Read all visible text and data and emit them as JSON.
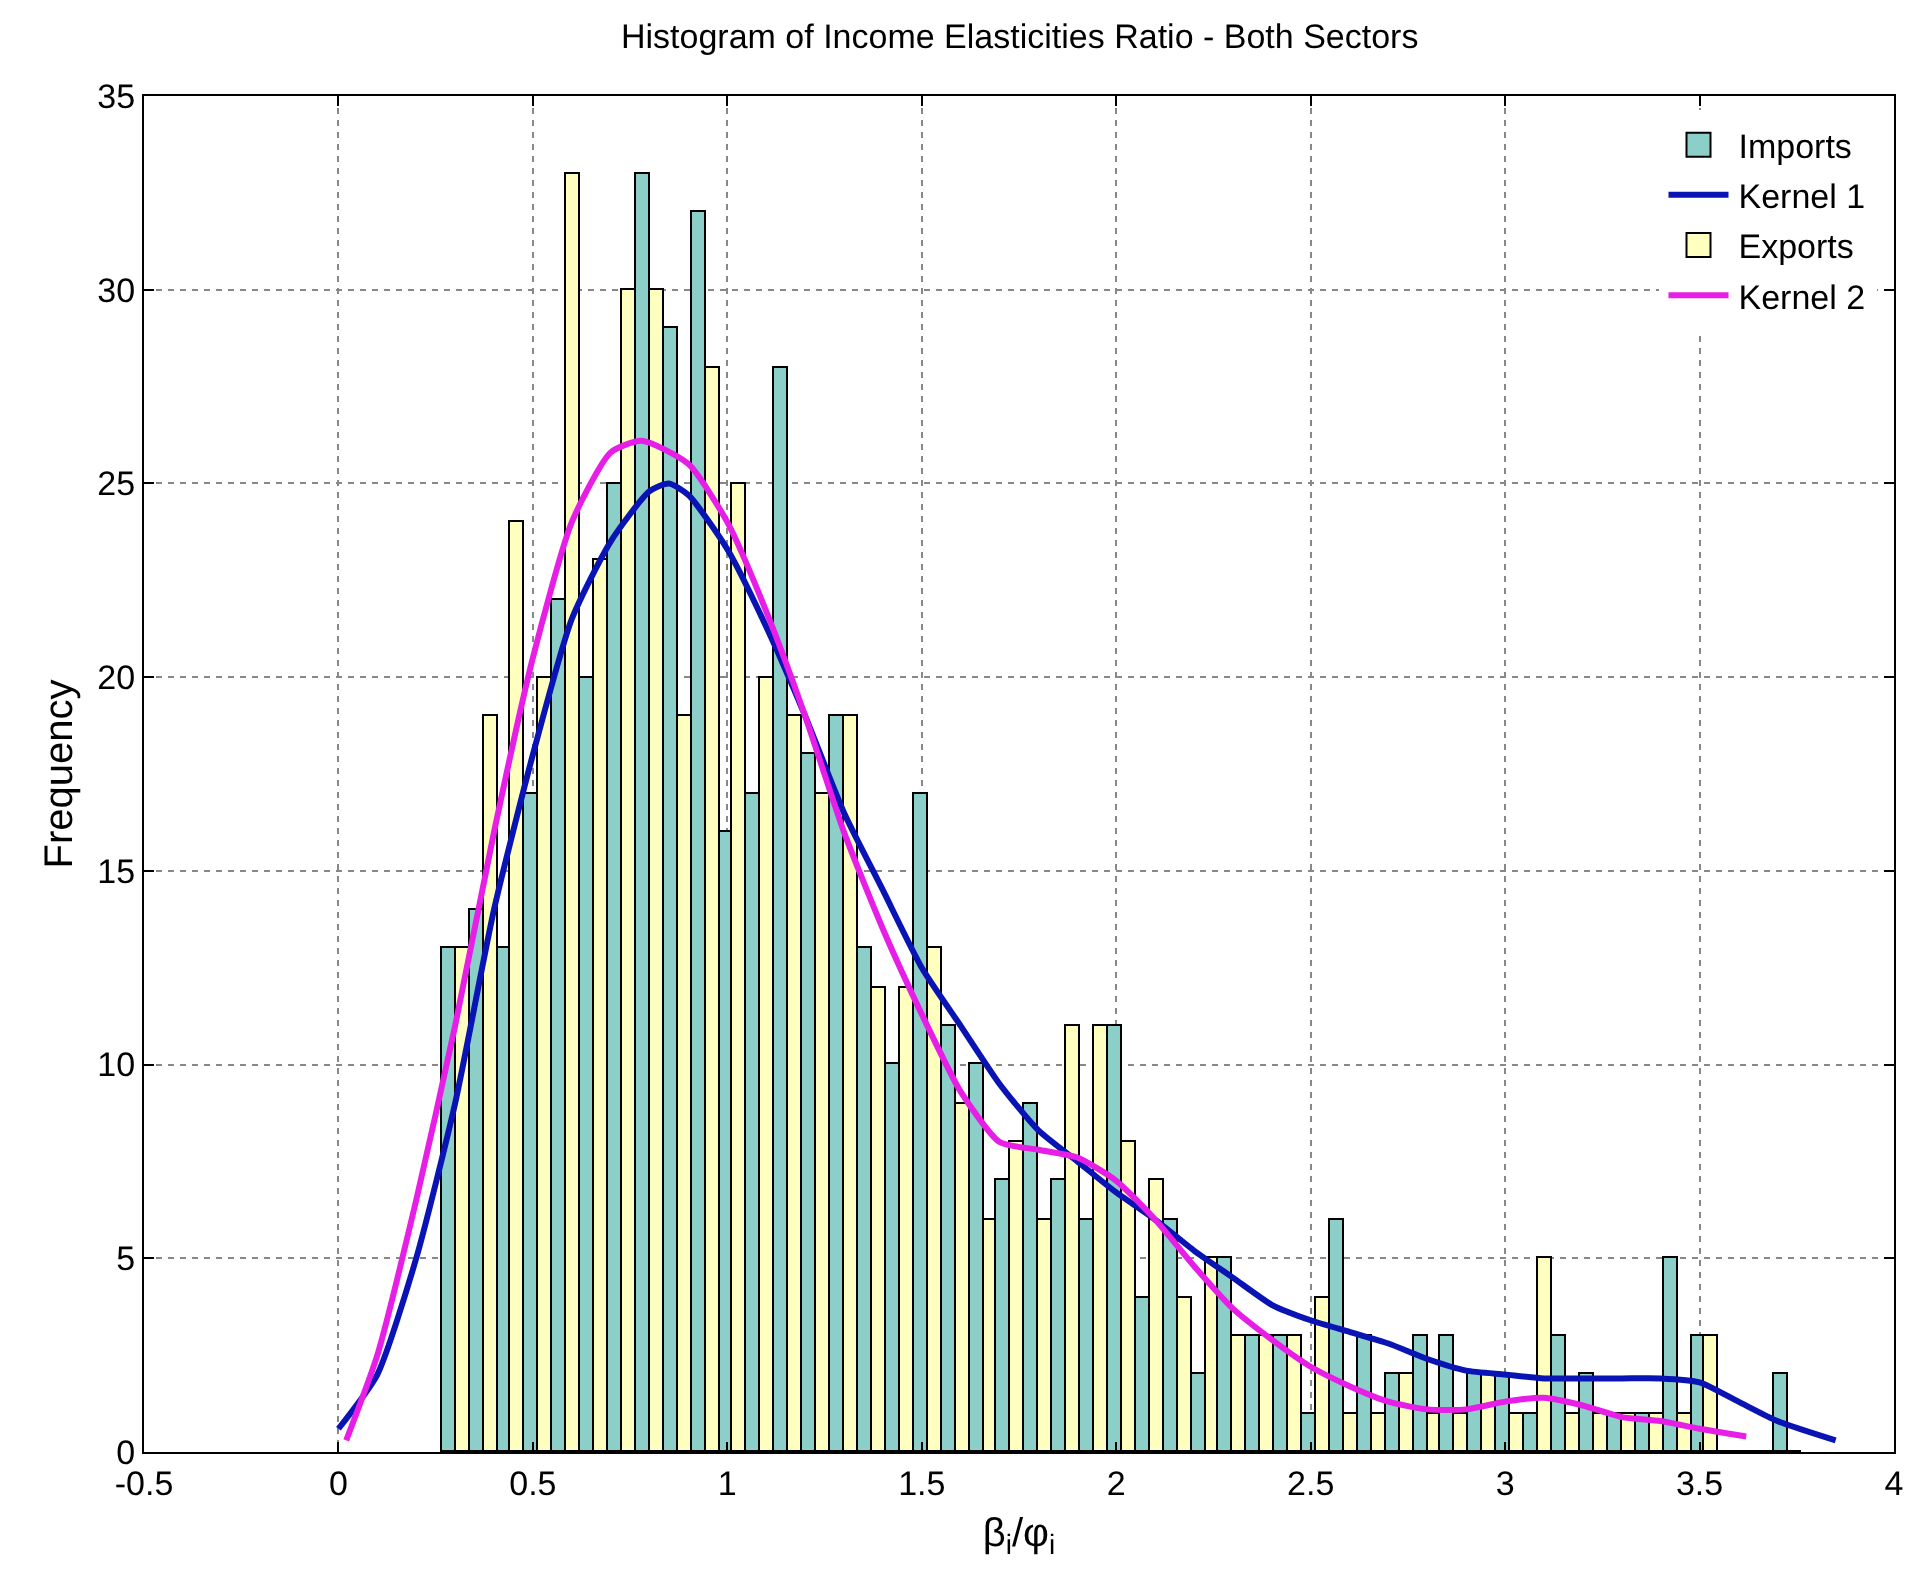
{
  "chart_data": {
    "type": "histogram",
    "title": "Histogram of Income Elasticities Ratio - Both Sectors",
    "xlabel": "β$_{i}$/φ$_{i}$",
    "ylabel": "Frequency",
    "bins": [
      0.265,
      0.336,
      0.408,
      0.479,
      0.551,
      0.622,
      0.693,
      0.765,
      0.836,
      0.908,
      0.979,
      1.05,
      1.122,
      1.193,
      1.265,
      1.336,
      1.407,
      1.479,
      1.55,
      1.622,
      1.693,
      1.764,
      1.836,
      1.907,
      1.979,
      2.05,
      2.121,
      2.193,
      2.264,
      2.336,
      2.407,
      2.478,
      2.55,
      2.621,
      2.693,
      2.764,
      2.835,
      2.907,
      2.978,
      3.05,
      3.121,
      3.192,
      3.264,
      3.335,
      3.407,
      3.478,
      3.549,
      3.621,
      3.692,
      3.764
    ],
    "series": [
      {
        "name": "Imports",
        "color": "#8ccfc8",
        "values": [
          13,
          14,
          13,
          17,
          22,
          20,
          25,
          33,
          29,
          32,
          16,
          17,
          28,
          18,
          19,
          13,
          10,
          17,
          11,
          10,
          7,
          9,
          7,
          6,
          11,
          4,
          6,
          2,
          5,
          3,
          3,
          1,
          6,
          3,
          2,
          3,
          3,
          2,
          2,
          1,
          3,
          2,
          1,
          1,
          5,
          3,
          0,
          0,
          2
        ]
      },
      {
        "name": "Kernel 1",
        "type": "line",
        "color": "#0a14b4",
        "x": [
          0,
          0.1,
          0.2,
          0.3,
          0.4,
          0.5,
          0.6,
          0.7,
          0.8,
          0.85,
          0.9,
          1.0,
          1.1,
          1.2,
          1.3,
          1.4,
          1.5,
          1.6,
          1.7,
          1.8,
          1.9,
          2.0,
          2.1,
          2.2,
          2.3,
          2.4,
          2.5,
          2.6,
          2.7,
          2.8,
          2.9,
          3.0,
          3.1,
          3.2,
          3.3,
          3.4,
          3.5,
          3.6,
          3.7,
          3.85
        ],
        "values": [
          0.6,
          2,
          5,
          9,
          14,
          18,
          21.5,
          23.5,
          24.8,
          25,
          24.7,
          23.3,
          21.3,
          19,
          16.5,
          14.5,
          12.5,
          11,
          9.5,
          8.3,
          7.5,
          6.7,
          6,
          5.2,
          4.5,
          3.8,
          3.4,
          3.1,
          2.8,
          2.4,
          2.1,
          2.0,
          1.9,
          1.9,
          1.9,
          1.9,
          1.8,
          1.3,
          0.8,
          0.3
        ]
      },
      {
        "name": "Exports",
        "color": "#ffffc0",
        "values": [
          13,
          19,
          24,
          20,
          33,
          23,
          30,
          30,
          19,
          28,
          25,
          20,
          19,
          17,
          19,
          12,
          12,
          13,
          9,
          6,
          8,
          6,
          11,
          11,
          8,
          7,
          4,
          5,
          3,
          3,
          3,
          4,
          1,
          1,
          2,
          1,
          1,
          2,
          1,
          5,
          1,
          1,
          1,
          1,
          1,
          3,
          0,
          0,
          0
        ]
      },
      {
        "name": "Kernel 2",
        "type": "line",
        "color": "#e61ee6",
        "x": [
          0.02,
          0.1,
          0.2,
          0.3,
          0.4,
          0.5,
          0.6,
          0.7,
          0.78,
          0.9,
          1.0,
          1.1,
          1.2,
          1.3,
          1.4,
          1.5,
          1.6,
          1.7,
          1.8,
          1.9,
          2.0,
          2.1,
          2.2,
          2.3,
          2.4,
          2.5,
          2.6,
          2.7,
          2.8,
          2.9,
          3.0,
          3.1,
          3.2,
          3.3,
          3.4,
          3.5,
          3.62
        ],
        "values": [
          0.3,
          2.5,
          6.5,
          11,
          16,
          20.5,
          24,
          25.8,
          26.1,
          25.5,
          24,
          21.7,
          19,
          16,
          13.5,
          11.3,
          9.3,
          8,
          7.8,
          7.6,
          7,
          6,
          4.8,
          3.7,
          2.9,
          2.2,
          1.7,
          1.3,
          1.1,
          1.1,
          1.3,
          1.4,
          1.2,
          0.9,
          0.8,
          0.6,
          0.4
        ]
      }
    ],
    "xlim": [
      -0.5,
      4
    ],
    "xticks": [
      -0.5,
      0,
      0.5,
      1,
      1.5,
      2,
      2.5,
      3,
      3.5,
      4
    ],
    "ylim": [
      0,
      35
    ],
    "yticks": [
      0,
      5,
      10,
      15,
      20,
      25,
      30,
      35
    ],
    "grid": true,
    "legend": "top right"
  }
}
